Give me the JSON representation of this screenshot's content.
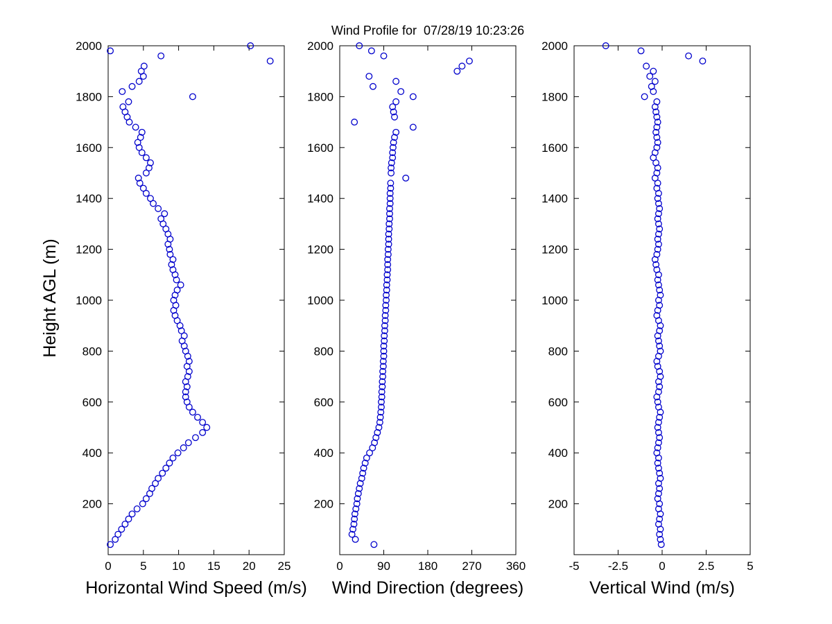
{
  "title": "Wind Profile for  07/28/19 10:23:26",
  "chart_data": {
    "type": "scatter",
    "title": "Wind Profile for  07/28/19 10:23:26",
    "ylabel": "Height AGL (m)",
    "ylim": [
      0,
      2000
    ],
    "yticks": [
      200,
      400,
      600,
      800,
      1000,
      1200,
      1400,
      1600,
      1800,
      2000
    ],
    "grid": false,
    "legend": false,
    "marker": {
      "shape": "open-circle",
      "color": "#0000cc",
      "radius": 4.3
    },
    "axis_color": "#000000",
    "heights": [
      40,
      60,
      80,
      100,
      120,
      140,
      160,
      180,
      200,
      220,
      240,
      260,
      280,
      300,
      320,
      340,
      360,
      380,
      400,
      420,
      440,
      460,
      480,
      500,
      520,
      540,
      560,
      580,
      600,
      620,
      640,
      660,
      680,
      700,
      720,
      740,
      760,
      780,
      800,
      820,
      840,
      860,
      880,
      900,
      920,
      940,
      960,
      980,
      1000,
      1020,
      1040,
      1060,
      1080,
      1100,
      1120,
      1140,
      1160,
      1180,
      1200,
      1220,
      1240,
      1260,
      1280,
      1300,
      1320,
      1340,
      1360,
      1380,
      1400,
      1420,
      1440,
      1460,
      1480,
      1500,
      1520,
      1540,
      1560,
      1580,
      1600,
      1620,
      1640,
      1660,
      1680,
      1700,
      1720,
      1740,
      1760,
      1780,
      1800,
      1820,
      1840,
      1860,
      1880,
      1900,
      1920,
      1940,
      1960,
      1980,
      2000
    ],
    "panels": [
      {
        "name": "horizontal-wind-speed",
        "xlabel": "Horizontal Wind Speed (m/s)",
        "xlim": [
          0,
          25
        ],
        "xticks": [
          0,
          5,
          10,
          15,
          20,
          25
        ],
        "values": [
          0.3,
          1.0,
          1.4,
          1.9,
          2.4,
          2.9,
          3.4,
          4.1,
          4.9,
          5.4,
          5.9,
          6.2,
          6.7,
          7.1,
          7.7,
          8.2,
          8.7,
          9.2,
          9.9,
          10.7,
          11.4,
          12.4,
          13.4,
          14.0,
          13.4,
          12.7,
          12.0,
          11.5,
          11.2,
          11.0,
          11.0,
          11.2,
          11.0,
          11.3,
          11.5,
          11.2,
          11.5,
          11.3,
          11.0,
          10.8,
          10.5,
          10.8,
          10.4,
          10.2,
          9.8,
          9.5,
          9.3,
          9.6,
          9.3,
          9.5,
          9.8,
          10.3,
          9.7,
          9.5,
          9.2,
          9.0,
          9.2,
          8.8,
          8.7,
          8.5,
          8.8,
          8.5,
          8.2,
          7.8,
          7.5,
          8.0,
          7.1,
          6.4,
          6.0,
          5.4,
          5.0,
          4.5,
          4.3,
          5.4,
          5.8,
          6.0,
          5.4,
          4.8,
          4.4,
          4.2,
          4.6,
          4.8,
          3.9,
          3.0,
          2.7,
          2.4,
          2.1,
          2.9,
          12.0,
          2.0,
          3.4,
          4.4,
          5.0,
          4.7,
          5.1,
          23.0,
          7.5,
          0.3,
          20.2
        ]
      },
      {
        "name": "wind-direction",
        "xlabel": "Wind Direction (degrees)",
        "xlim": [
          0,
          360
        ],
        "xticks": [
          0,
          90,
          180,
          270,
          360
        ],
        "values": [
          70,
          32,
          25,
          27,
          29,
          30,
          31,
          33,
          35,
          36,
          38,
          40,
          42,
          45,
          47,
          49,
          52,
          55,
          61,
          67,
          71,
          74,
          77,
          80,
          82,
          83,
          84,
          85,
          85,
          86,
          86,
          87,
          87,
          88,
          88,
          89,
          89,
          90,
          90,
          90,
          91,
          91,
          92,
          92,
          93,
          93,
          94,
          94,
          95,
          95,
          96,
          96,
          97,
          97,
          98,
          98,
          98,
          99,
          99,
          100,
          100,
          100,
          101,
          101,
          102,
          102,
          102,
          103,
          103,
          103,
          104,
          104,
          135,
          105,
          105,
          106,
          108,
          108,
          109,
          110,
          112,
          115,
          150,
          30,
          112,
          110,
          108,
          115,
          150,
          125,
          68,
          115,
          60,
          240,
          250,
          265,
          90,
          65,
          40
        ]
      },
      {
        "name": "vertical-wind",
        "xlabel": "Vertical Wind (m/s)",
        "xlim": [
          -5,
          5
        ],
        "xticks": [
          -5,
          -2.5,
          0,
          2.5,
          5
        ],
        "values": [
          -0.05,
          -0.1,
          -0.15,
          -0.1,
          -0.2,
          -0.15,
          -0.1,
          -0.2,
          -0.15,
          -0.25,
          -0.2,
          -0.15,
          -0.2,
          -0.1,
          -0.15,
          -0.2,
          -0.25,
          -0.2,
          -0.3,
          -0.25,
          -0.2,
          -0.15,
          -0.2,
          -0.25,
          -0.2,
          -0.15,
          -0.1,
          -0.2,
          -0.25,
          -0.3,
          -0.2,
          -0.15,
          -0.2,
          -0.1,
          -0.15,
          -0.25,
          -0.3,
          -0.2,
          -0.1,
          -0.15,
          -0.2,
          -0.25,
          -0.15,
          -0.1,
          -0.2,
          -0.3,
          -0.25,
          -0.15,
          -0.2,
          -0.1,
          -0.15,
          -0.2,
          -0.25,
          -0.2,
          -0.3,
          -0.35,
          -0.4,
          -0.3,
          -0.25,
          -0.2,
          -0.25,
          -0.2,
          -0.15,
          -0.2,
          -0.25,
          -0.2,
          -0.15,
          -0.2,
          -0.25,
          -0.2,
          -0.3,
          -0.25,
          -0.4,
          -0.3,
          -0.25,
          -0.35,
          -0.5,
          -0.4,
          -0.3,
          -0.25,
          -0.3,
          -0.35,
          -0.3,
          -0.25,
          -0.3,
          -0.35,
          -0.4,
          -0.3,
          -1.0,
          -0.5,
          -0.6,
          -0.4,
          -0.7,
          -0.5,
          -0.9,
          2.3,
          1.5,
          -1.2,
          -3.2
        ]
      }
    ]
  }
}
